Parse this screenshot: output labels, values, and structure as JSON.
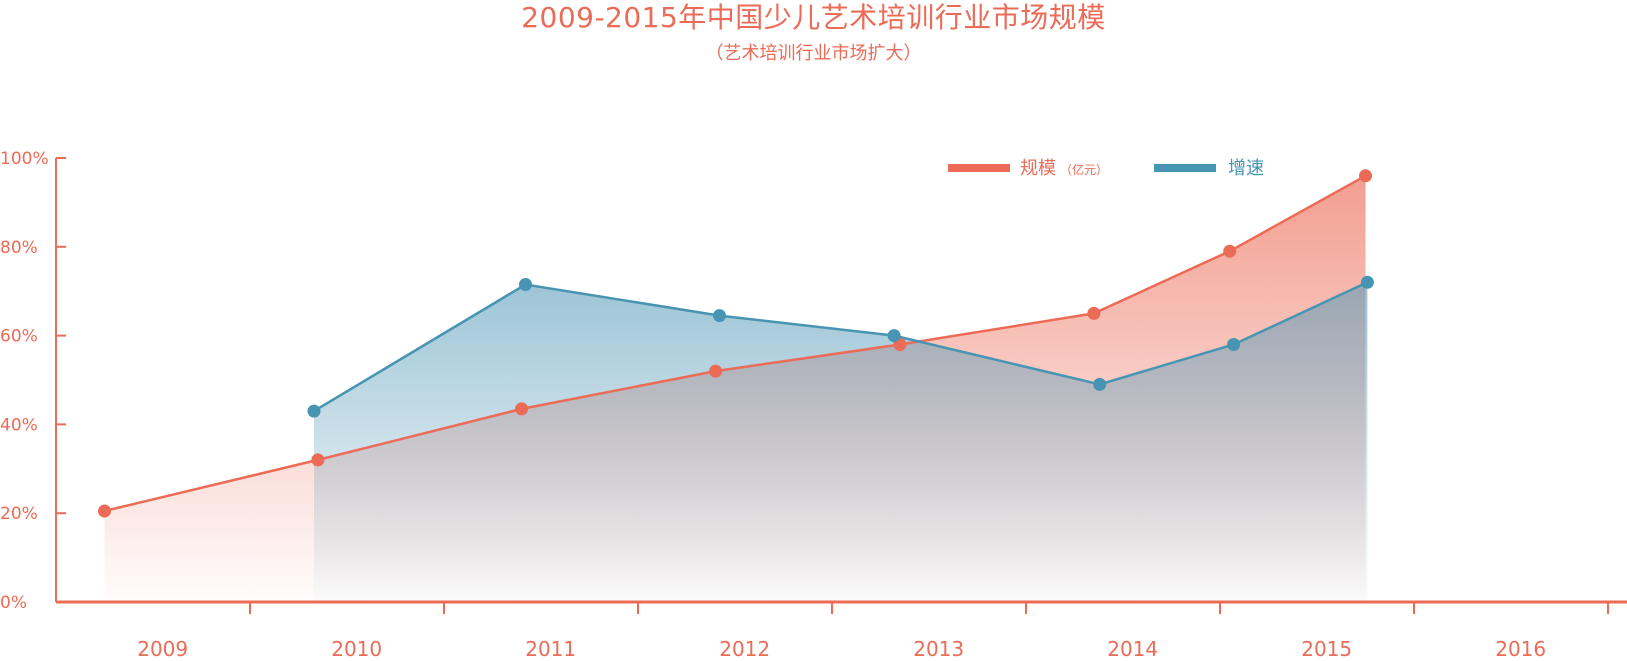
{
  "chart_data": {
    "type": "area",
    "title": "2009-2015年中国少儿艺术培训行业市场规模",
    "subtitle": "（艺术培训行业市场扩大）",
    "categories": [
      "2009",
      "2010",
      "2011",
      "2012",
      "2013",
      "2014",
      "2015",
      "2016"
    ],
    "y_ticks": [
      "0%",
      "20%",
      "40%",
      "60%",
      "80%",
      "100%"
    ],
    "ylim": [
      0,
      100
    ],
    "grid": false,
    "legend_position": "top-right",
    "series": [
      {
        "name": "规模",
        "unit": "（亿元）",
        "color": "#ec6b56",
        "x": [
          0.25,
          1.35,
          2.4,
          3.4,
          4.35,
          5.35,
          6.05,
          6.75
        ],
        "values": [
          20.5,
          32,
          43.5,
          52,
          58,
          65,
          79,
          96
        ]
      },
      {
        "name": "增速",
        "color": "#4794b3",
        "x": [
          1.33,
          2.42,
          3.42,
          4.32,
          5.38,
          6.07,
          6.76
        ],
        "values": [
          43,
          71.5,
          64.5,
          60,
          49,
          58,
          72
        ]
      }
    ]
  }
}
